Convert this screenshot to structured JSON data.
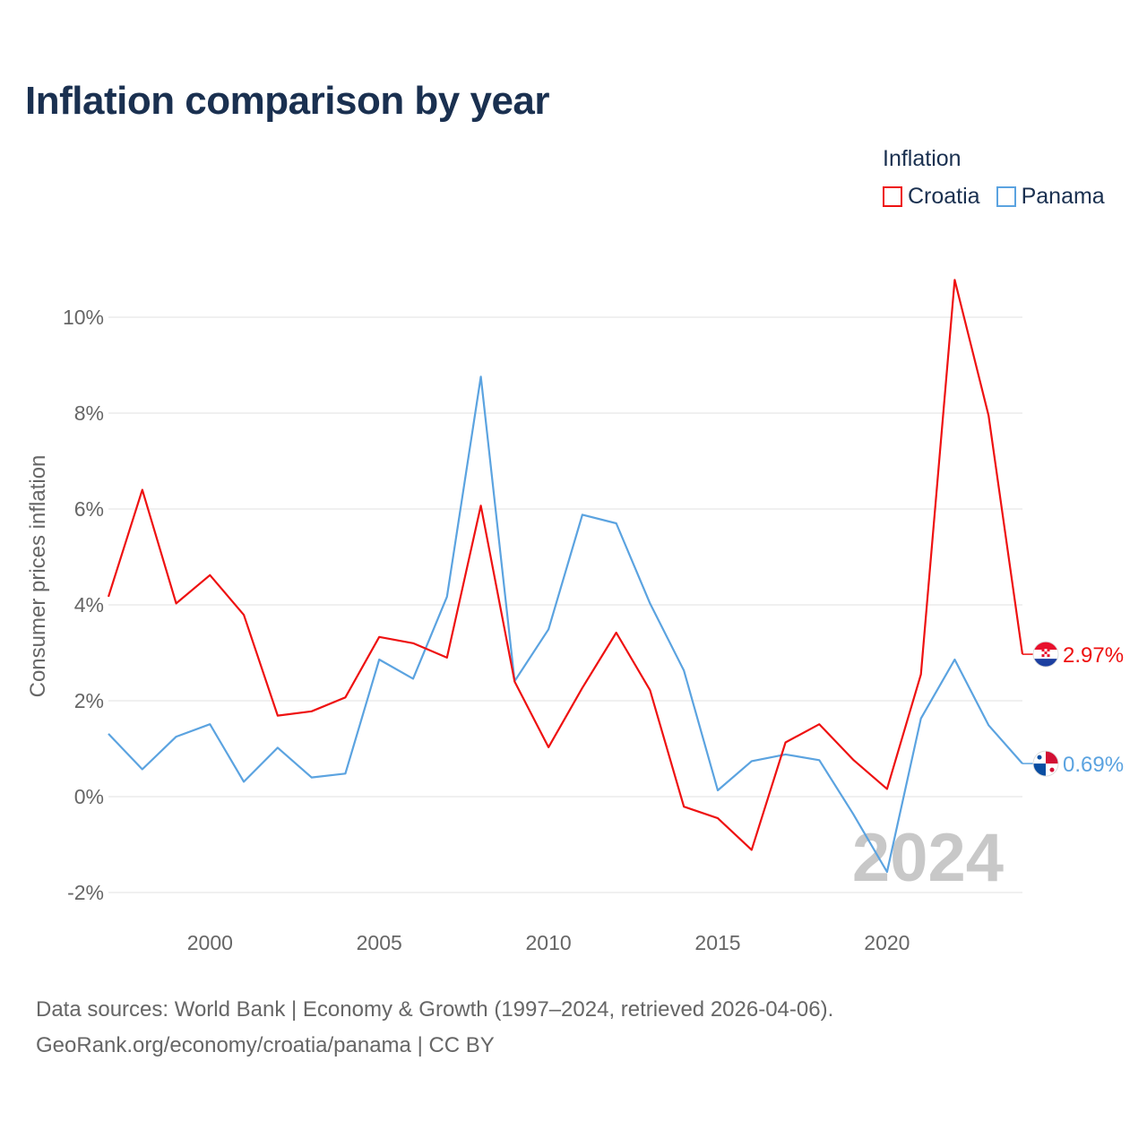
{
  "title": "Inflation comparison by year",
  "legend": {
    "title": "Inflation",
    "items": [
      {
        "label": "Croatia",
        "color": "#ee1111"
      },
      {
        "label": "Panama",
        "color": "#5ba3e0"
      }
    ]
  },
  "footer": {
    "line1": "Data sources: World Bank | Economy & Growth (1997–2024, retrieved 2026-04-06).",
    "line2": "GeoRank.org/economy/croatia/panama | CC BY"
  },
  "chart_data": {
    "type": "line",
    "title": "Inflation comparison by year",
    "xlabel": "",
    "ylabel": "Consumer prices inflation",
    "xlim": [
      1997,
      2024
    ],
    "ylim": [
      -2.5,
      11
    ],
    "yticks": [
      -2,
      0,
      2,
      4,
      6,
      8,
      10
    ],
    "ytick_labels": [
      "-2%",
      "0%",
      "2%",
      "4%",
      "6%",
      "8%",
      "10%"
    ],
    "xticks": [
      2000,
      2005,
      2010,
      2015,
      2020
    ],
    "xtick_labels": [
      "2000",
      "2005",
      "2010",
      "2015",
      "2020"
    ],
    "grid": true,
    "watermark_year": "2024",
    "x": [
      1997,
      1998,
      1999,
      2000,
      2001,
      2002,
      2003,
      2004,
      2005,
      2006,
      2007,
      2008,
      2009,
      2010,
      2011,
      2012,
      2013,
      2014,
      2015,
      2016,
      2017,
      2018,
      2019,
      2020,
      2021,
      2022,
      2023,
      2024
    ],
    "series": [
      {
        "name": "Croatia",
        "color": "#ee1111",
        "end_label": "2.97%",
        "values": [
          4.17,
          6.4,
          4.03,
          4.62,
          3.79,
          1.69,
          1.78,
          2.07,
          3.33,
          3.2,
          2.9,
          6.07,
          2.4,
          1.03,
          2.27,
          3.42,
          2.22,
          -0.21,
          -0.45,
          -1.11,
          1.13,
          1.51,
          0.77,
          0.16,
          2.55,
          10.78,
          7.95,
          2.97
        ]
      },
      {
        "name": "Panama",
        "color": "#5ba3e0",
        "end_label": "0.69%",
        "values": [
          1.31,
          0.57,
          1.25,
          1.51,
          0.31,
          1.02,
          0.4,
          0.48,
          2.86,
          2.46,
          4.17,
          8.76,
          2.41,
          3.49,
          5.88,
          5.7,
          4.03,
          2.63,
          0.13,
          0.74,
          0.88,
          0.76,
          -0.36,
          -1.57,
          1.63,
          2.86,
          1.49,
          0.69
        ]
      }
    ]
  }
}
